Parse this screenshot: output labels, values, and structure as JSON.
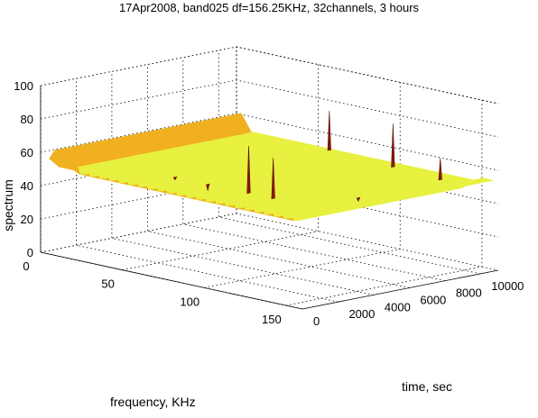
{
  "chart_data": {
    "type": "surface",
    "title": "17Apr2008, band025  df=156.25KHz, 32channels, 3 hours",
    "xlabel": "time, sec",
    "ylabel": "frequency, KHz",
    "zlabel": "spectrum",
    "xlim": [
      0,
      11000
    ],
    "ylim": [
      0,
      160
    ],
    "zlim": [
      0,
      100
    ],
    "x_ticks": [
      0,
      2000,
      4000,
      6000,
      8000,
      10000
    ],
    "y_ticks": [
      0,
      50,
      100,
      150
    ],
    "z_ticks": [
      0,
      20,
      40,
      60,
      80,
      100
    ],
    "x_tick_labels": [
      "0",
      "2000",
      "4000",
      "6000",
      "8000",
      "10000"
    ],
    "y_tick_labels": [
      "0",
      "50",
      "100",
      "150"
    ],
    "z_tick_labels": [
      "0",
      "20",
      "40",
      "60",
      "80",
      "100"
    ],
    "grid": true,
    "colormap": "autumn",
    "colors": {
      "low": "#a8c070",
      "mid_low": "#e8f040",
      "mid": "#f0b020",
      "high": "#e05010",
      "peak": "#8a1a08"
    },
    "baseline_level": 48,
    "edge_ridges": [
      {
        "axis": "frequency",
        "at": 5,
        "level": 62
      },
      {
        "axis": "frequency",
        "at": 155,
        "level": 58
      },
      {
        "axis": "time",
        "at": 300,
        "level": 64
      },
      {
        "axis": "time",
        "at": 10800,
        "level": 52
      }
    ],
    "peaks": [
      {
        "x": 200,
        "y": 80,
        "z": 60
      },
      {
        "x": 200,
        "y": 100,
        "z": 58
      },
      {
        "x": 200,
        "y": 125,
        "z": 90
      },
      {
        "x": 200,
        "y": 140,
        "z": 86
      },
      {
        "x": 3600,
        "y": 155,
        "z": 56
      },
      {
        "x": 10500,
        "y": 130,
        "z": 62
      },
      {
        "x": 10600,
        "y": 100,
        "z": 76
      },
      {
        "x": 10700,
        "y": 60,
        "z": 75
      }
    ]
  }
}
